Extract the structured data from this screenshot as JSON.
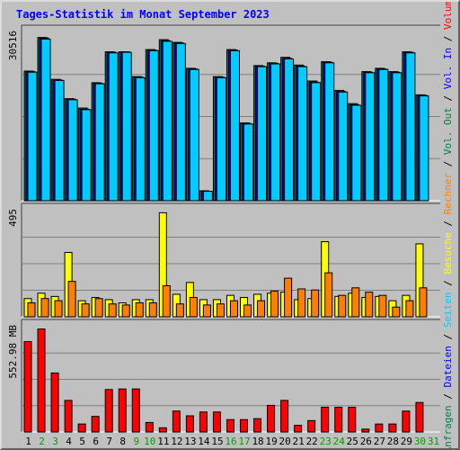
{
  "chart_data": [
    {
      "type": "bar",
      "title": "Tages-Statistik im Monat September 2023",
      "xlabel": "",
      "ylabel_max": "30516",
      "ylim": [
        0,
        30516
      ],
      "categories": [
        "1",
        "2",
        "3",
        "4",
        "5",
        "6",
        "7",
        "8",
        "9",
        "10",
        "11",
        "12",
        "13",
        "14",
        "15",
        "16",
        "17",
        "18",
        "19",
        "20",
        "21",
        "22",
        "23",
        "24",
        "25",
        "26",
        "27",
        "28",
        "29",
        "30",
        "31"
      ],
      "weekend_days": [
        "2",
        "3",
        "9",
        "10",
        "16",
        "17",
        "23",
        "24",
        "30",
        "31"
      ],
      "series": [
        {
          "name": "Anfragen",
          "color": "#008040",
          "values": [
            23500,
            29600,
            22000,
            18500,
            16800,
            21400,
            27000,
            27000,
            22500,
            27400,
            29200,
            28700,
            24000,
            1800,
            22500,
            27400,
            14100,
            24500,
            25000,
            26000,
            24600,
            21700,
            25200,
            20000,
            17600,
            23400,
            24000,
            23400,
            27000,
            19200,
            null
          ]
        },
        {
          "name": "Dateien",
          "color": "#0000ff",
          "values": [
            23400,
            29500,
            21900,
            18400,
            16600,
            21300,
            26900,
            27000,
            22400,
            27300,
            29000,
            28600,
            23900,
            1700,
            22400,
            27300,
            14000,
            24400,
            24900,
            25800,
            24400,
            21500,
            25100,
            19800,
            17400,
            23300,
            23900,
            23300,
            26900,
            19100,
            null
          ]
        },
        {
          "name": "Seiten",
          "color": "#00ccff",
          "values": [
            23300,
            29300,
            21800,
            18300,
            16500,
            21200,
            26800,
            26900,
            22300,
            27200,
            28900,
            28500,
            23800,
            1700,
            22300,
            27200,
            13900,
            24300,
            24800,
            25700,
            24300,
            21400,
            25000,
            19700,
            17300,
            23200,
            23800,
            23200,
            26800,
            19000,
            null
          ]
        }
      ]
    },
    {
      "type": "bar",
      "ylabel_max": "495",
      "ylim": [
        0,
        495
      ],
      "series": [
        {
          "name": "Besuche",
          "color": "#ffff00",
          "values": [
            85,
            110,
            95,
            300,
            75,
            90,
            80,
            65,
            80,
            80,
            485,
            105,
            160,
            80,
            80,
            100,
            90,
            105,
            110,
            115,
            80,
            85,
            350,
            95,
            110,
            90,
            95,
            75,
            100,
            340,
            null
          ]
        },
        {
          "name": "Rechner",
          "color": "#ff8000",
          "values": [
            65,
            85,
            75,
            165,
            60,
            85,
            60,
            55,
            65,
            65,
            145,
            60,
            90,
            55,
            60,
            75,
            55,
            75,
            120,
            180,
            130,
            125,
            205,
            100,
            135,
            115,
            100,
            45,
            75,
            135,
            null
          ]
        }
      ]
    },
    {
      "type": "bar",
      "ylabel_max": "552.98 MB",
      "ylim": [
        0,
        552.98
      ],
      "series": [
        {
          "name": "Volumen",
          "color": "#ff0000",
          "values": [
            475,
            541,
            310,
            166,
            42,
            82,
            223,
            226,
            226,
            50,
            22,
            110,
            85,
            105,
            105,
            65,
            65,
            70,
            140,
            166,
            35,
            60,
            130,
            130,
            130,
            15,
            42,
            42,
            110,
            155,
            null
          ]
        }
      ]
    }
  ],
  "legend": [
    {
      "text": "Anfragen",
      "color": "#008040"
    },
    {
      "text": " / ",
      "color": "#000000"
    },
    {
      "text": "Dateien",
      "color": "#0000ff"
    },
    {
      "text": " / ",
      "color": "#000000"
    },
    {
      "text": "Seiten",
      "color": "#00ccff"
    },
    {
      "text": " / ",
      "color": "#000000"
    },
    {
      "text": "Besuche",
      "color": "#ffff00"
    },
    {
      "text": " / ",
      "color": "#000000"
    },
    {
      "text": "Rechner",
      "color": "#ff8000"
    },
    {
      "text": " / ",
      "color": "#000000"
    },
    {
      "text": "Vol. Out",
      "color": "#008040"
    },
    {
      "text": " / ",
      "color": "#000000"
    },
    {
      "text": "Vol. In",
      "color": "#0000ff"
    },
    {
      "text": " / ",
      "color": "#000000"
    },
    {
      "text": "Volumen",
      "color": "#ff0000"
    }
  ],
  "colors": {
    "title": "#0000ff",
    "plot_bg": "#c0c0c0",
    "grid": "#808080",
    "weekday_label": "#000000",
    "weekend_label": "#00a000"
  }
}
